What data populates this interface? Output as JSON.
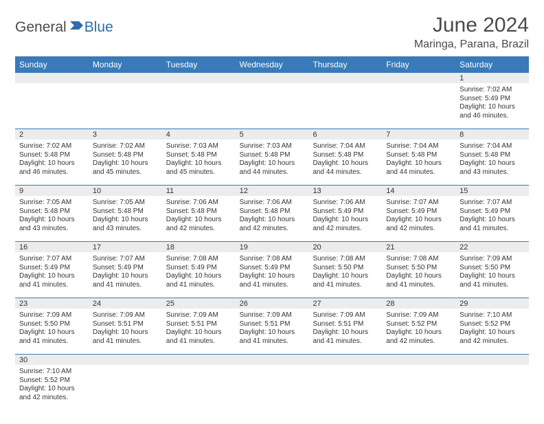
{
  "logo": {
    "part1": "General",
    "part2": "Blue"
  },
  "title": "June 2024",
  "subtitle": "Maringa, Parana, Brazil",
  "colors": {
    "header_bg": "#3a7ab8",
    "header_text": "#ffffff",
    "daynum_bg": "#ececec",
    "text": "#333333",
    "logo_blue": "#2c6ca8",
    "logo_gray": "#4a4a4a",
    "border": "#3a7ab8"
  },
  "weekdays": [
    "Sunday",
    "Monday",
    "Tuesday",
    "Wednesday",
    "Thursday",
    "Friday",
    "Saturday"
  ],
  "weeks": [
    [
      null,
      null,
      null,
      null,
      null,
      null,
      {
        "d": "1",
        "sr": "7:02 AM",
        "ss": "5:49 PM",
        "dl": "10 hours and 46 minutes."
      }
    ],
    [
      {
        "d": "2",
        "sr": "7:02 AM",
        "ss": "5:48 PM",
        "dl": "10 hours and 46 minutes."
      },
      {
        "d": "3",
        "sr": "7:02 AM",
        "ss": "5:48 PM",
        "dl": "10 hours and 45 minutes."
      },
      {
        "d": "4",
        "sr": "7:03 AM",
        "ss": "5:48 PM",
        "dl": "10 hours and 45 minutes."
      },
      {
        "d": "5",
        "sr": "7:03 AM",
        "ss": "5:48 PM",
        "dl": "10 hours and 44 minutes."
      },
      {
        "d": "6",
        "sr": "7:04 AM",
        "ss": "5:48 PM",
        "dl": "10 hours and 44 minutes."
      },
      {
        "d": "7",
        "sr": "7:04 AM",
        "ss": "5:48 PM",
        "dl": "10 hours and 44 minutes."
      },
      {
        "d": "8",
        "sr": "7:04 AM",
        "ss": "5:48 PM",
        "dl": "10 hours and 43 minutes."
      }
    ],
    [
      {
        "d": "9",
        "sr": "7:05 AM",
        "ss": "5:48 PM",
        "dl": "10 hours and 43 minutes."
      },
      {
        "d": "10",
        "sr": "7:05 AM",
        "ss": "5:48 PM",
        "dl": "10 hours and 43 minutes."
      },
      {
        "d": "11",
        "sr": "7:06 AM",
        "ss": "5:48 PM",
        "dl": "10 hours and 42 minutes."
      },
      {
        "d": "12",
        "sr": "7:06 AM",
        "ss": "5:48 PM",
        "dl": "10 hours and 42 minutes."
      },
      {
        "d": "13",
        "sr": "7:06 AM",
        "ss": "5:49 PM",
        "dl": "10 hours and 42 minutes."
      },
      {
        "d": "14",
        "sr": "7:07 AM",
        "ss": "5:49 PM",
        "dl": "10 hours and 42 minutes."
      },
      {
        "d": "15",
        "sr": "7:07 AM",
        "ss": "5:49 PM",
        "dl": "10 hours and 41 minutes."
      }
    ],
    [
      {
        "d": "16",
        "sr": "7:07 AM",
        "ss": "5:49 PM",
        "dl": "10 hours and 41 minutes."
      },
      {
        "d": "17",
        "sr": "7:07 AM",
        "ss": "5:49 PM",
        "dl": "10 hours and 41 minutes."
      },
      {
        "d": "18",
        "sr": "7:08 AM",
        "ss": "5:49 PM",
        "dl": "10 hours and 41 minutes."
      },
      {
        "d": "19",
        "sr": "7:08 AM",
        "ss": "5:49 PM",
        "dl": "10 hours and 41 minutes."
      },
      {
        "d": "20",
        "sr": "7:08 AM",
        "ss": "5:50 PM",
        "dl": "10 hours and 41 minutes."
      },
      {
        "d": "21",
        "sr": "7:08 AM",
        "ss": "5:50 PM",
        "dl": "10 hours and 41 minutes."
      },
      {
        "d": "22",
        "sr": "7:09 AM",
        "ss": "5:50 PM",
        "dl": "10 hours and 41 minutes."
      }
    ],
    [
      {
        "d": "23",
        "sr": "7:09 AM",
        "ss": "5:50 PM",
        "dl": "10 hours and 41 minutes."
      },
      {
        "d": "24",
        "sr": "7:09 AM",
        "ss": "5:51 PM",
        "dl": "10 hours and 41 minutes."
      },
      {
        "d": "25",
        "sr": "7:09 AM",
        "ss": "5:51 PM",
        "dl": "10 hours and 41 minutes."
      },
      {
        "d": "26",
        "sr": "7:09 AM",
        "ss": "5:51 PM",
        "dl": "10 hours and 41 minutes."
      },
      {
        "d": "27",
        "sr": "7:09 AM",
        "ss": "5:51 PM",
        "dl": "10 hours and 41 minutes."
      },
      {
        "d": "28",
        "sr": "7:09 AM",
        "ss": "5:52 PM",
        "dl": "10 hours and 42 minutes."
      },
      {
        "d": "29",
        "sr": "7:10 AM",
        "ss": "5:52 PM",
        "dl": "10 hours and 42 minutes."
      }
    ],
    [
      {
        "d": "30",
        "sr": "7:10 AM",
        "ss": "5:52 PM",
        "dl": "10 hours and 42 minutes."
      },
      null,
      null,
      null,
      null,
      null,
      null
    ]
  ],
  "labels": {
    "sunrise": "Sunrise: ",
    "sunset": "Sunset: ",
    "daylight": "Daylight: "
  }
}
